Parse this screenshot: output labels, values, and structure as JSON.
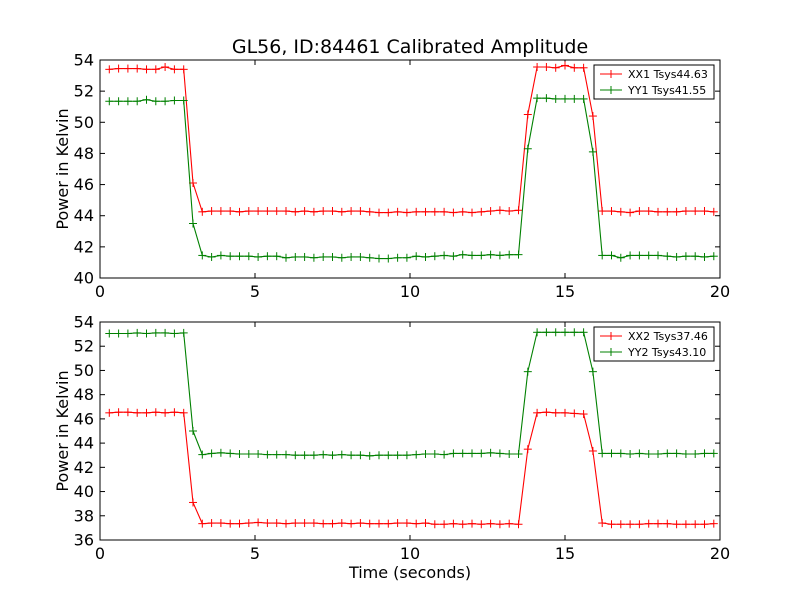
{
  "title": "GL56, ID:84461 Calibrated Amplitude",
  "chart_data": [
    {
      "type": "line",
      "title": "GL56, ID:84461 Calibrated Amplitude",
      "xlabel": "",
      "ylabel": "Power in Kelvin",
      "xlim": [
        0,
        20
      ],
      "ylim": [
        40,
        54
      ],
      "xticks": [
        "0",
        "5",
        "10",
        "15",
        "20"
      ],
      "yticks": [
        "40",
        "42",
        "44",
        "46",
        "48",
        "50",
        "52",
        "54"
      ],
      "grid": false,
      "legend_position": "top-right",
      "x": [
        0.3,
        0.6,
        0.9,
        1.2,
        1.5,
        1.8,
        2.1,
        2.4,
        2.7,
        3.0,
        3.3,
        3.6,
        3.9,
        4.2,
        4.5,
        4.8,
        5.1,
        5.4,
        5.7,
        6.0,
        6.3,
        6.6,
        6.9,
        7.2,
        7.5,
        7.8,
        8.1,
        8.4,
        8.7,
        9.0,
        9.3,
        9.6,
        9.9,
        10.2,
        10.5,
        10.8,
        11.1,
        11.4,
        11.7,
        12.0,
        12.3,
        12.6,
        12.9,
        13.2,
        13.5,
        13.8,
        14.1,
        14.4,
        14.7,
        15.0,
        15.3,
        15.6,
        15.9,
        16.2,
        16.5,
        16.8,
        17.1,
        17.4,
        17.7,
        18.0,
        18.3,
        18.6,
        18.9,
        19.2,
        19.5,
        19.8
      ],
      "series": [
        {
          "name": "XX1 Tsys44.63",
          "color": "#ff0000",
          "values": [
            53.4,
            53.45,
            53.45,
            53.45,
            53.4,
            53.4,
            53.55,
            53.4,
            53.4,
            46.1,
            44.25,
            44.3,
            44.3,
            44.3,
            44.25,
            44.3,
            44.3,
            44.3,
            44.3,
            44.3,
            44.25,
            44.3,
            44.25,
            44.3,
            44.3,
            44.25,
            44.3,
            44.3,
            44.25,
            44.2,
            44.2,
            44.25,
            44.2,
            44.25,
            44.25,
            44.25,
            44.25,
            44.2,
            44.25,
            44.2,
            44.25,
            44.3,
            44.35,
            44.3,
            44.35,
            50.5,
            53.55,
            53.55,
            53.5,
            53.65,
            53.5,
            53.5,
            50.4,
            44.3,
            44.3,
            44.25,
            44.2,
            44.3,
            44.3,
            44.25,
            44.25,
            44.25,
            44.3,
            44.3,
            44.3,
            44.25
          ]
        },
        {
          "name": "YY1 Tsys41.55",
          "color": "#008000",
          "values": [
            51.35,
            51.35,
            51.35,
            51.35,
            51.45,
            51.35,
            51.35,
            51.4,
            51.4,
            43.5,
            41.45,
            41.35,
            41.45,
            41.4,
            41.4,
            41.4,
            41.35,
            41.4,
            41.4,
            41.3,
            41.35,
            41.35,
            41.3,
            41.35,
            41.35,
            41.3,
            41.35,
            41.35,
            41.3,
            41.25,
            41.25,
            41.3,
            41.3,
            41.4,
            41.35,
            41.4,
            41.45,
            41.4,
            41.5,
            41.45,
            41.45,
            41.5,
            41.45,
            41.5,
            41.5,
            48.3,
            51.55,
            51.55,
            51.5,
            51.5,
            51.5,
            51.5,
            48.1,
            41.45,
            41.45,
            41.3,
            41.45,
            41.45,
            41.45,
            41.45,
            41.4,
            41.35,
            41.4,
            41.4,
            41.35,
            41.4
          ]
        }
      ]
    },
    {
      "type": "line",
      "title": "",
      "xlabel": "Time (seconds)",
      "ylabel": "Power in Kelvin",
      "xlim": [
        0,
        20
      ],
      "ylim": [
        36,
        54
      ],
      "xticks": [
        "0",
        "5",
        "10",
        "15",
        "20"
      ],
      "yticks": [
        "36",
        "38",
        "40",
        "42",
        "44",
        "46",
        "48",
        "50",
        "52",
        "54"
      ],
      "grid": false,
      "legend_position": "top-right",
      "x": [
        0.3,
        0.6,
        0.9,
        1.2,
        1.5,
        1.8,
        2.1,
        2.4,
        2.7,
        3.0,
        3.3,
        3.6,
        3.9,
        4.2,
        4.5,
        4.8,
        5.1,
        5.4,
        5.7,
        6.0,
        6.3,
        6.6,
        6.9,
        7.2,
        7.5,
        7.8,
        8.1,
        8.4,
        8.7,
        9.0,
        9.3,
        9.6,
        9.9,
        10.2,
        10.5,
        10.8,
        11.1,
        11.4,
        11.7,
        12.0,
        12.3,
        12.6,
        12.9,
        13.2,
        13.5,
        13.8,
        14.1,
        14.4,
        14.7,
        15.0,
        15.3,
        15.6,
        15.9,
        16.2,
        16.5,
        16.8,
        17.1,
        17.4,
        17.7,
        18.0,
        18.3,
        18.6,
        18.9,
        19.2,
        19.5,
        19.8
      ],
      "series": [
        {
          "name": "XX2 Tsys37.46",
          "color": "#ff0000",
          "values": [
            46.5,
            46.55,
            46.55,
            46.5,
            46.5,
            46.55,
            46.5,
            46.55,
            46.5,
            39.1,
            37.35,
            37.4,
            37.4,
            37.35,
            37.35,
            37.4,
            37.45,
            37.4,
            37.4,
            37.35,
            37.4,
            37.4,
            37.4,
            37.35,
            37.35,
            37.4,
            37.35,
            37.4,
            37.35,
            37.35,
            37.35,
            37.4,
            37.4,
            37.35,
            37.4,
            37.3,
            37.3,
            37.35,
            37.3,
            37.35,
            37.3,
            37.35,
            37.3,
            37.35,
            37.3,
            43.5,
            46.5,
            46.55,
            46.5,
            46.5,
            46.45,
            46.4,
            43.35,
            37.4,
            37.3,
            37.3,
            37.3,
            37.3,
            37.35,
            37.35,
            37.35,
            37.3,
            37.3,
            37.3,
            37.3,
            37.35
          ]
        },
        {
          "name": "YY2 Tsys43.10",
          "color": "#008000",
          "values": [
            53.05,
            53.05,
            53.05,
            53.1,
            53.05,
            53.1,
            53.1,
            53.05,
            53.1,
            45.0,
            43.05,
            43.15,
            43.2,
            43.15,
            43.1,
            43.1,
            43.1,
            43.05,
            43.05,
            43.05,
            43.0,
            43.0,
            43.0,
            43.05,
            43.0,
            43.05,
            43.0,
            43.0,
            42.95,
            43.0,
            43.0,
            43.0,
            43.0,
            43.05,
            43.1,
            43.1,
            43.05,
            43.15,
            43.15,
            43.15,
            43.15,
            43.2,
            43.15,
            43.1,
            43.1,
            49.9,
            53.15,
            53.15,
            53.15,
            53.15,
            53.15,
            53.15,
            49.9,
            43.15,
            43.15,
            43.15,
            43.1,
            43.15,
            43.1,
            43.1,
            43.15,
            43.15,
            43.1,
            43.1,
            43.15,
            43.15
          ]
        }
      ]
    }
  ]
}
